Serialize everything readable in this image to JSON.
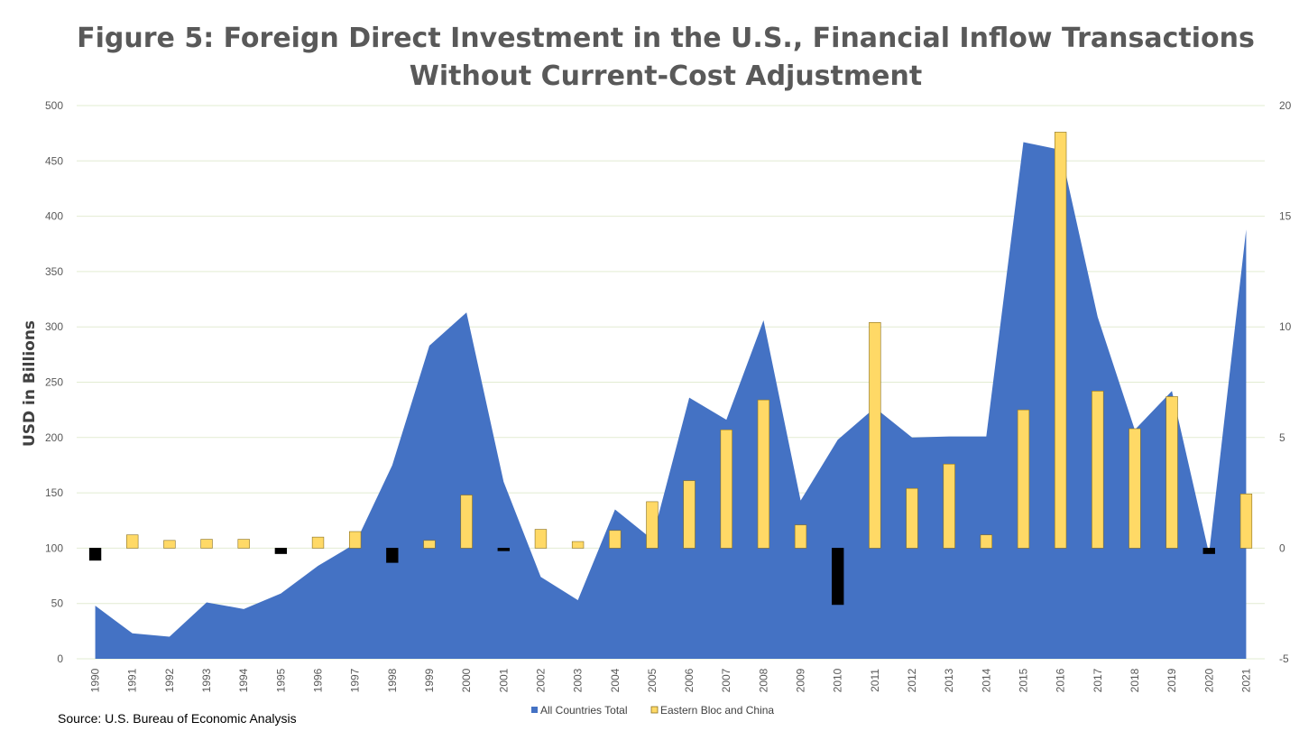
{
  "chart_data": {
    "type": "area",
    "title": "Figure 5: Foreign Direct Investment in the U.S., Financial Inflow Transactions",
    "subtitle": "Without Current-Cost Adjustment",
    "ylabel": "USD in Billions",
    "ylim": [
      0,
      500
    ],
    "y2lim": [
      -5,
      20
    ],
    "yticks": [
      "0",
      "50",
      "100",
      "150",
      "200",
      "250",
      "300",
      "350",
      "400",
      "450",
      "500"
    ],
    "y2ticks": [
      "-5",
      "0",
      "5",
      "10",
      "15",
      "20"
    ],
    "categories": [
      "1990",
      "1991",
      "1992",
      "1993",
      "1994",
      "1995",
      "1996",
      "1997",
      "1998",
      "1999",
      "2000",
      "2001",
      "2002",
      "2003",
      "2004",
      "2005",
      "2006",
      "2007",
      "2008",
      "2009",
      "2010",
      "2011",
      "2012",
      "2013",
      "2014",
      "2015",
      "2016",
      "2017",
      "2018",
      "2019",
      "2020",
      "2021"
    ],
    "grid": true,
    "legend": "bottom",
    "series": [
      {
        "name": "All Countries Total",
        "axis": "left",
        "type": "area",
        "color": "#4472C4",
        "values": [
          48,
          23,
          20,
          51,
          45,
          59,
          84,
          104,
          175,
          283,
          313,
          160,
          74,
          53,
          135,
          108,
          236,
          216,
          306,
          143,
          198,
          227,
          200,
          201,
          201,
          467,
          460,
          309,
          207,
          242,
          95,
          388
        ]
      },
      {
        "name": "Eastern Bloc and China",
        "axis": "right",
        "type": "bar",
        "color": "#FFD966",
        "negative_color": "#000000",
        "values": [
          -0.55,
          0.6,
          0.35,
          0.4,
          0.4,
          -0.25,
          0.5,
          0.75,
          -0.65,
          0.35,
          2.4,
          -0.12,
          0.85,
          0.3,
          0.8,
          2.1,
          3.05,
          5.35,
          6.7,
          1.05,
          -2.55,
          10.2,
          2.7,
          3.8,
          0.6,
          6.25,
          18.8,
          7.1,
          5.4,
          6.85,
          -0.25,
          2.45
        ]
      }
    ]
  },
  "source": "Source: U.S. Bureau of Economic Analysis"
}
